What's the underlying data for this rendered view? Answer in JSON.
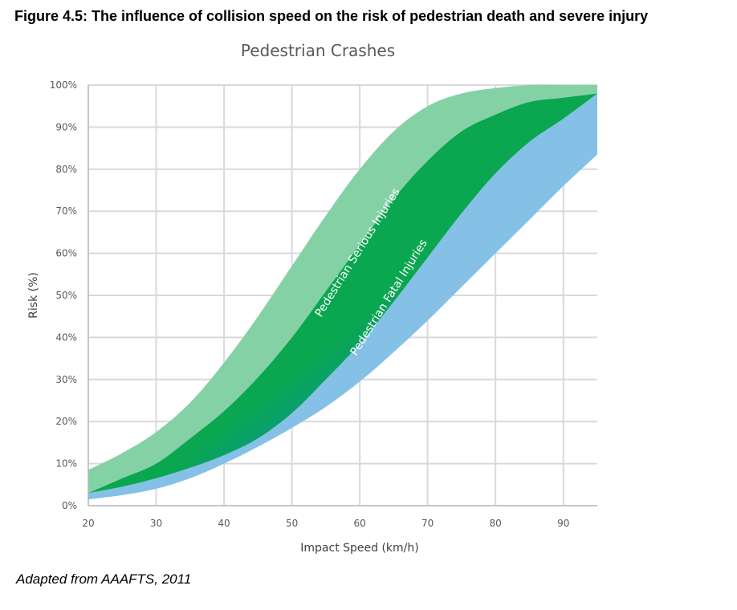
{
  "figure": {
    "caption": "Figure 4.5:  The influence of collision speed on the risk of pedestrian death and severe injury",
    "source": "Adapted from AAAFTS, 2011"
  },
  "chart_data": {
    "type": "area",
    "title": "Pedestrian Crashes",
    "xlabel": "Impact Speed (km/h)",
    "ylabel": "Risk (%)",
    "xlim": [
      20,
      95
    ],
    "ylim": [
      0,
      100
    ],
    "x_ticks": [
      20,
      30,
      40,
      50,
      60,
      70,
      80,
      90
    ],
    "y_ticks": [
      0,
      10,
      20,
      30,
      40,
      50,
      60,
      70,
      80,
      90,
      100
    ],
    "y_tick_labels": [
      "0%",
      "10%",
      "20%",
      "30%",
      "40%",
      "50%",
      "60%",
      "70%",
      "80%",
      "90%",
      "100%"
    ],
    "grid": true,
    "colors": {
      "serious_band": "#85d1a6",
      "fatal_band": "#85c1e6",
      "core_green": "#0aa650",
      "core_blue": "#0a84c8",
      "grid": "#d9d9d9"
    },
    "series": [
      {
        "name": "Pedestrian Serious Injuries",
        "x": [
          20,
          25,
          30,
          35,
          40,
          45,
          50,
          55,
          60,
          65,
          70,
          75,
          80,
          85,
          90,
          95
        ],
        "upper": [
          8.5,
          12.5,
          17.5,
          24.5,
          34,
          45,
          57,
          69,
          80,
          89,
          95,
          98,
          99.3,
          100,
          100,
          100
        ],
        "lower": [
          3,
          6.5,
          10,
          16,
          22.5,
          30.5,
          40,
          51,
          62,
          73,
          82,
          89,
          93,
          96,
          97,
          98
        ]
      },
      {
        "name": "Pedestrian Fatal Injuries",
        "x": [
          20,
          25,
          30,
          35,
          40,
          45,
          50,
          55,
          60,
          65,
          70,
          75,
          80,
          85,
          90,
          95
        ],
        "upper": [
          3,
          4.5,
          6.5,
          9,
          12,
          16,
          22,
          30,
          38.5,
          48.5,
          59,
          69.5,
          79,
          86.5,
          92,
          98
        ],
        "lower": [
          1.5,
          2.5,
          4,
          6.5,
          10,
          14,
          18.5,
          23.5,
          29.5,
          36.5,
          44,
          52,
          60,
          68,
          76,
          83.5
        ]
      }
    ]
  }
}
